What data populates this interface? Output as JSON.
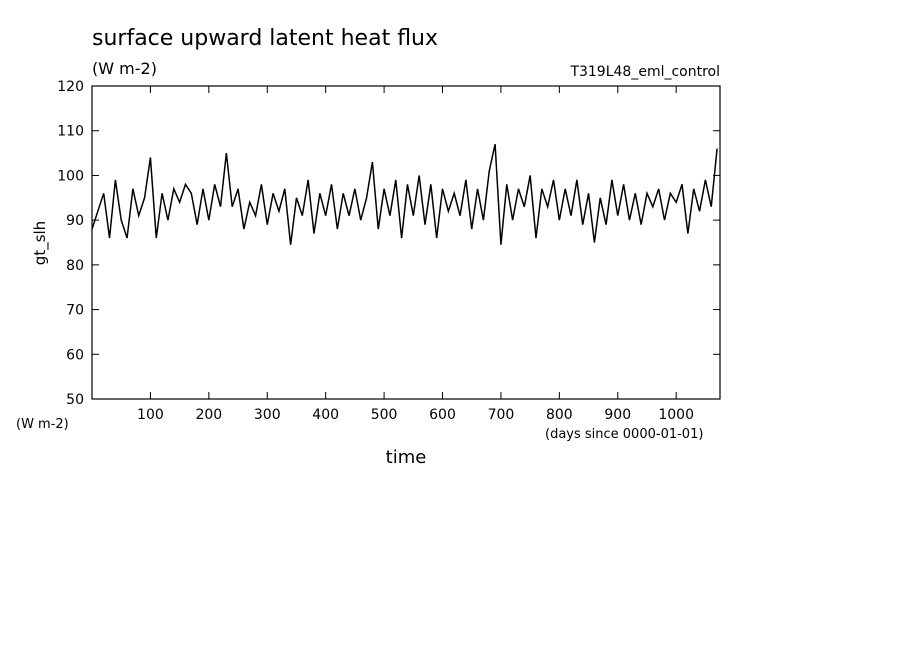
{
  "chart_data": {
    "type": "line",
    "title": "surface upward latent heat flux",
    "subtitle": "(W m-2)",
    "run_label": "T319L48_eml_control",
    "ylabel": "gt_slh",
    "yunit": "(W m-2)",
    "xlabel": "time",
    "xunit": "(days since 0000-01-01)",
    "xlim": [
      0,
      1075
    ],
    "ylim": [
      50,
      120
    ],
    "xticks": [
      100,
      200,
      300,
      400,
      500,
      600,
      700,
      800,
      900,
      1000
    ],
    "yticks": [
      50,
      60,
      70,
      80,
      90,
      100,
      110,
      120
    ],
    "series": [
      {
        "color": "#000000",
        "x": [
          0,
          10,
          20,
          30,
          40,
          50,
          60,
          70,
          80,
          90,
          100,
          110,
          120,
          130,
          140,
          150,
          160,
          170,
          180,
          190,
          200,
          210,
          220,
          230,
          240,
          250,
          260,
          270,
          280,
          290,
          300,
          310,
          320,
          330,
          340,
          350,
          360,
          370,
          380,
          390,
          400,
          410,
          420,
          430,
          440,
          450,
          460,
          470,
          480,
          490,
          500,
          510,
          520,
          530,
          540,
          550,
          560,
          570,
          580,
          590,
          600,
          610,
          620,
          630,
          640,
          650,
          660,
          670,
          680,
          690,
          700,
          710,
          720,
          730,
          740,
          750,
          760,
          770,
          780,
          790,
          800,
          810,
          820,
          830,
          840,
          850,
          860,
          870,
          880,
          890,
          900,
          910,
          920,
          930,
          940,
          950,
          960,
          970,
          980,
          990,
          1000,
          1010,
          1020,
          1030,
          1040,
          1050,
          1060,
          1070
        ],
        "values": [
          88,
          92,
          96,
          86,
          99,
          90,
          86,
          97,
          91,
          95,
          104,
          86,
          96,
          90,
          97,
          94,
          98,
          96,
          89,
          97,
          90,
          98,
          93,
          105,
          93,
          97,
          88,
          94,
          91,
          98,
          89,
          96,
          92,
          97,
          84.5,
          95,
          91,
          99,
          87,
          96,
          91,
          98,
          88,
          96,
          91,
          97,
          90,
          95,
          103,
          88,
          97,
          91,
          99,
          86,
          98,
          91,
          100,
          89,
          98,
          86,
          97,
          92,
          96,
          91,
          99,
          88,
          97,
          90,
          101,
          107,
          84.5,
          98,
          90,
          97,
          93,
          100,
          86,
          97,
          93,
          99,
          90,
          97,
          91,
          99,
          89,
          96,
          85,
          95,
          89,
          99,
          91,
          98,
          90,
          96,
          89,
          96,
          93,
          97,
          90,
          96,
          94,
          98,
          87,
          97,
          92,
          99,
          93,
          106
        ]
      }
    ]
  }
}
